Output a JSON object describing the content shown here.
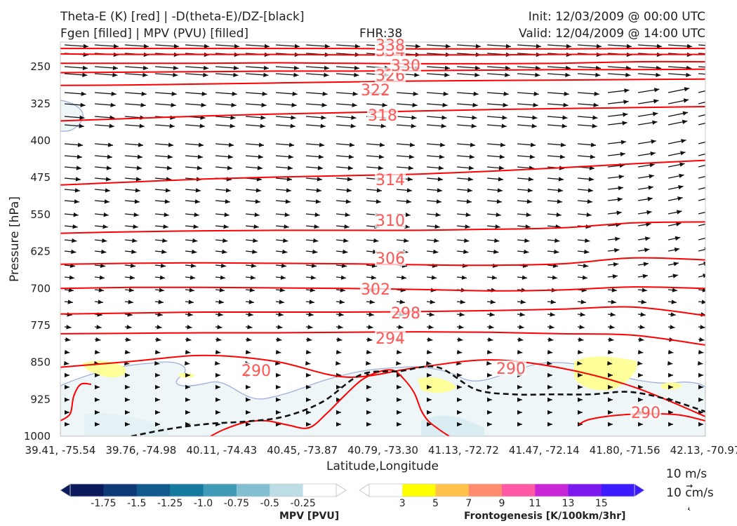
{
  "header": {
    "title_line1_left": "Theta-E (K) [red] | -D(theta-E)/DZ-[black]",
    "title_line2_left": "Fgen [filled] | MPV (PVU) [filled]",
    "fhr": "FHR:38",
    "init": "Init: 12/03/2009 @ 00:00 UTC",
    "valid": "Valid: 12/04/2009 @ 14:00 UTC"
  },
  "chart_data": {
    "type": "cross-section",
    "xlabel": "Latitude,Longitude",
    "ylabel": "Pressure [hPa]",
    "x_ticks": [
      "39.41, -75.54",
      "39.76, -74.98",
      "40.11, -74.43",
      "40.45, -73.87",
      "40.79, -73.30",
      "41.13, -72.72",
      "41.47, -72.14",
      "41.80, -71.56",
      "42.13, -70.97"
    ],
    "y_ticks": [
      250,
      325,
      400,
      475,
      550,
      625,
      700,
      775,
      850,
      925,
      1000
    ],
    "ylim": [
      1000,
      200
    ],
    "theta_e_contour_labels": [
      {
        "value": "290",
        "count": 3
      },
      {
        "value": "294"
      },
      {
        "value": "298"
      },
      {
        "value": "302"
      },
      {
        "value": "306"
      },
      {
        "value": "310"
      },
      {
        "value": "314"
      },
      {
        "value": "318"
      },
      {
        "value": "322"
      },
      {
        "value": "326"
      },
      {
        "value": "330"
      },
      {
        "value": "334"
      },
      {
        "value": "338"
      }
    ],
    "theta_e_contours": [
      {
        "value": 290,
        "p": [
          860,
          848,
          836,
          848,
          880,
          860,
          845,
          862,
          900,
          960
        ]
      },
      {
        "value": 294,
        "p": [
          792,
          791,
          790,
          790,
          789,
          788,
          789,
          792,
          795,
          815
        ]
      },
      {
        "value": 298,
        "p": [
          752,
          750,
          748,
          748,
          748,
          747,
          745,
          742,
          738,
          755
        ]
      },
      {
        "value": 302,
        "p": [
          700,
          698,
          698,
          699,
          700,
          702,
          705,
          703,
          697,
          700
        ]
      },
      {
        "value": 306,
        "p": [
          651,
          649,
          648,
          649,
          650,
          652,
          653,
          650,
          638,
          642
        ]
      },
      {
        "value": 310,
        "p": [
          588,
          585,
          583,
          582,
          582,
          582,
          580,
          577,
          567,
          565
        ]
      },
      {
        "value": 314,
        "p": [
          490,
          484,
          478,
          474,
          471,
          468,
          462,
          455,
          447,
          440
        ]
      },
      {
        "value": 318,
        "p": [
          360,
          355,
          350,
          346,
          343,
          340,
          337,
          335,
          333,
          331
        ]
      },
      {
        "value": 322,
        "p": [
          288,
          287,
          285,
          283,
          281,
          279,
          278,
          277,
          276,
          275
        ]
      },
      {
        "value": 326,
        "p": [
          262,
          261,
          260,
          259,
          259,
          258,
          257,
          256,
          256,
          255
        ]
      },
      {
        "value": 330,
        "p": [
          243,
          243,
          243,
          242,
          243,
          244,
          244,
          243,
          240,
          240
        ]
      },
      {
        "value": 334,
        "p": [
          224,
          225,
          225,
          225,
          226,
          226,
          226,
          225,
          225,
          225
        ]
      },
      {
        "value": 338,
        "p": [
          213,
          213,
          213,
          213,
          213,
          214,
          214,
          214,
          213,
          213
        ]
      }
    ],
    "dthetae_dz_zero_line_p": [
      1000,
      985,
      975,
      970,
      960,
      930,
      875,
      868,
      860,
      905,
      915,
      915,
      915,
      910,
      925,
      950
    ],
    "wind_barb_reference": [
      "10 m/s",
      "10 cm/s"
    ],
    "mpv_colorbar": {
      "title": "MPV [PVU]",
      "ticks": [
        "-1.75",
        "-1.5",
        "-1.25",
        "-1.0",
        "-0.75",
        "-0.5",
        "-0.25"
      ],
      "colors": [
        "#0a1a5c",
        "#0f3a78",
        "#105a8e",
        "#157a9e",
        "#3f9bb8",
        "#82bfd3",
        "#bcdde6",
        "#ffffff"
      ]
    },
    "fgen_colorbar": {
      "title": "Frontogenesis [K/100km/3hr]",
      "ticks": [
        "3",
        "5",
        "7",
        "9",
        "11",
        "13",
        "15"
      ],
      "colors": [
        "#ffffff",
        "#ffff00",
        "#ffc24a",
        "#ff8c6e",
        "#ff5aa5",
        "#c827d6",
        "#7c19ee",
        "#3a1cff"
      ]
    }
  }
}
